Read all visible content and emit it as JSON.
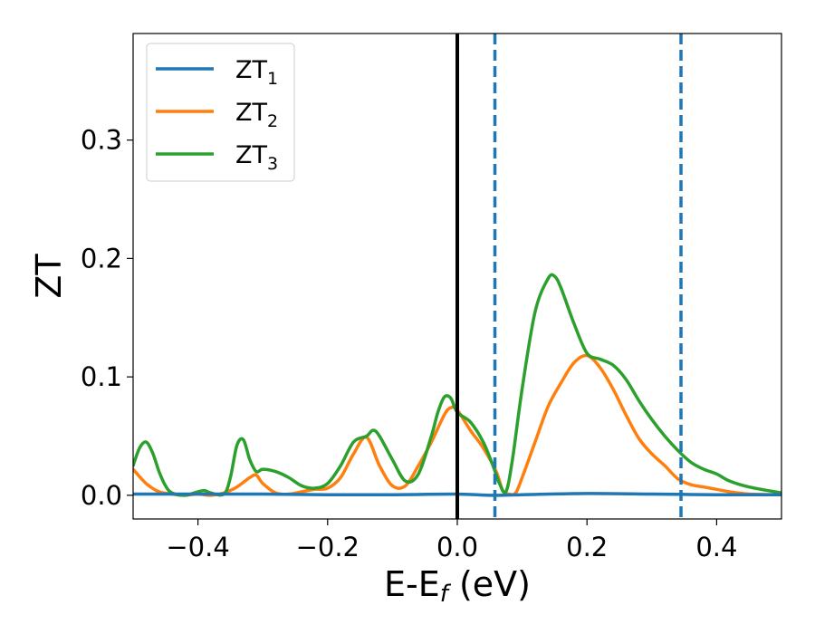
{
  "chart_data": {
    "type": "line",
    "xlabel": "E-E",
    "xlabel_sub": "f",
    "xlabel_unit": " (eV)",
    "ylabel": "ZT",
    "xlim": [
      -0.5,
      0.5
    ],
    "ylim": [
      -0.02,
      0.39
    ],
    "xticks": [
      -0.4,
      -0.2,
      0.0,
      0.2,
      0.4
    ],
    "xtick_labels": [
      "−0.4",
      "−0.2",
      "0.0",
      "0.2",
      "0.4"
    ],
    "yticks": [
      0.0,
      0.1,
      0.2,
      0.3
    ],
    "ytick_labels": [
      "0.0",
      "0.1",
      "0.2",
      "0.3"
    ],
    "grid": false,
    "legend_position": "top-left",
    "series": [
      {
        "name": "ZT",
        "sub": "1",
        "color": "#1f77b4",
        "x": [
          -0.5,
          -0.4,
          -0.3,
          -0.2,
          -0.1,
          0.0,
          0.05,
          0.1,
          0.2,
          0.3,
          0.4,
          0.5
        ],
        "y": [
          0.001,
          0.001,
          0.001,
          0.0005,
          0.0005,
          0.001,
          0.0,
          0.0005,
          0.0015,
          0.001,
          0.0005,
          0.0005
        ]
      },
      {
        "name": "ZT",
        "sub": "2",
        "color": "#ff7f0e",
        "x": [
          -0.5,
          -0.48,
          -0.46,
          -0.44,
          -0.42,
          -0.4,
          -0.38,
          -0.36,
          -0.34,
          -0.32,
          -0.31,
          -0.3,
          -0.28,
          -0.26,
          -0.24,
          -0.22,
          -0.2,
          -0.18,
          -0.16,
          -0.14,
          -0.12,
          -0.1,
          -0.08,
          -0.06,
          -0.04,
          -0.02,
          -0.01,
          0.0,
          0.02,
          0.04,
          0.06,
          0.07,
          0.08,
          0.09,
          0.1,
          0.12,
          0.14,
          0.16,
          0.18,
          0.2,
          0.22,
          0.24,
          0.26,
          0.28,
          0.3,
          0.32,
          0.34,
          0.36,
          0.38,
          0.4,
          0.42,
          0.45,
          0.5
        ],
        "y": [
          0.022,
          0.01,
          0.003,
          0.001,
          0.0,
          0.001,
          0.0,
          0.002,
          0.007,
          0.015,
          0.017,
          0.01,
          0.002,
          0.001,
          0.003,
          0.005,
          0.006,
          0.015,
          0.035,
          0.049,
          0.025,
          0.008,
          0.008,
          0.025,
          0.045,
          0.068,
          0.074,
          0.072,
          0.055,
          0.04,
          0.02,
          0.004,
          0.001,
          0.002,
          0.015,
          0.045,
          0.075,
          0.095,
          0.112,
          0.118,
          0.108,
          0.09,
          0.068,
          0.048,
          0.035,
          0.025,
          0.014,
          0.009,
          0.007,
          0.005,
          0.003,
          0.001,
          0.0005
        ]
      },
      {
        "name": "ZT",
        "sub": "3",
        "color": "#2ca02c",
        "x": [
          -0.5,
          -0.49,
          -0.48,
          -0.47,
          -0.46,
          -0.45,
          -0.44,
          -0.42,
          -0.4,
          -0.39,
          -0.38,
          -0.36,
          -0.35,
          -0.34,
          -0.33,
          -0.32,
          -0.31,
          -0.3,
          -0.28,
          -0.26,
          -0.24,
          -0.22,
          -0.2,
          -0.18,
          -0.16,
          -0.14,
          -0.13,
          -0.12,
          -0.1,
          -0.08,
          -0.06,
          -0.04,
          -0.03,
          -0.02,
          -0.01,
          0.0,
          0.02,
          0.04,
          0.055,
          0.065,
          0.075,
          0.085,
          0.1,
          0.12,
          0.14,
          0.15,
          0.16,
          0.18,
          0.2,
          0.22,
          0.24,
          0.26,
          0.28,
          0.3,
          0.32,
          0.34,
          0.36,
          0.38,
          0.4,
          0.42,
          0.45,
          0.5
        ],
        "y": [
          0.025,
          0.04,
          0.045,
          0.036,
          0.02,
          0.008,
          0.002,
          0.0,
          0.003,
          0.004,
          0.002,
          0.001,
          0.015,
          0.042,
          0.047,
          0.03,
          0.02,
          0.022,
          0.02,
          0.015,
          0.008,
          0.006,
          0.01,
          0.025,
          0.045,
          0.05,
          0.055,
          0.05,
          0.03,
          0.012,
          0.018,
          0.05,
          0.07,
          0.083,
          0.082,
          0.07,
          0.062,
          0.045,
          0.025,
          0.01,
          0.003,
          0.03,
          0.09,
          0.155,
          0.183,
          0.185,
          0.175,
          0.145,
          0.12,
          0.115,
          0.11,
          0.098,
          0.08,
          0.064,
          0.05,
          0.038,
          0.028,
          0.022,
          0.018,
          0.012,
          0.007,
          0.002
        ]
      }
    ],
    "vlines": [
      {
        "x": 0.0,
        "color": "#000000",
        "style": "solid"
      },
      {
        "x": 0.058,
        "color": "#1f77b4",
        "style": "dashed"
      },
      {
        "x": 0.345,
        "color": "#1f77b4",
        "style": "dashed"
      }
    ]
  }
}
